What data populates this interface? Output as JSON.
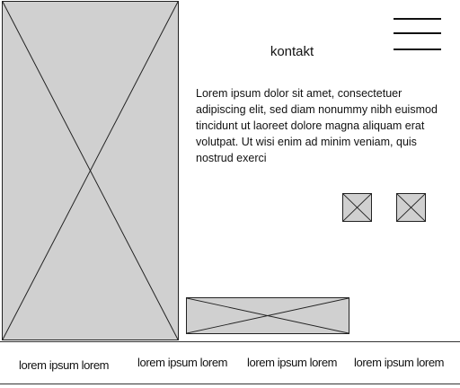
{
  "header": {
    "title": "kontakt",
    "menu_icon": "hamburger-menu-icon"
  },
  "main": {
    "paragraph": "Lorem ipsum dolor sit amet, consectetuer adipiscing elit, sed diam nonummy nibh euismod tincidunt ut laoreet dolore magna aliquam erat volutpat. Ut wisi enim ad minim veniam, quis nostrud exerci"
  },
  "placeholders": {
    "hero_image": "image-placeholder",
    "icon_1": "image-placeholder",
    "icon_2": "image-placeholder",
    "banner_image": "image-placeholder"
  },
  "footer": {
    "links": [
      "lorem ipsum lorem",
      "lorem ipsum lorem",
      "lorem ipsum lorem",
      "lorem ipsum lorem"
    ]
  },
  "colors": {
    "placeholder_fill": "#d0d0d0",
    "stroke": "#222222",
    "background": "#ffffff"
  }
}
